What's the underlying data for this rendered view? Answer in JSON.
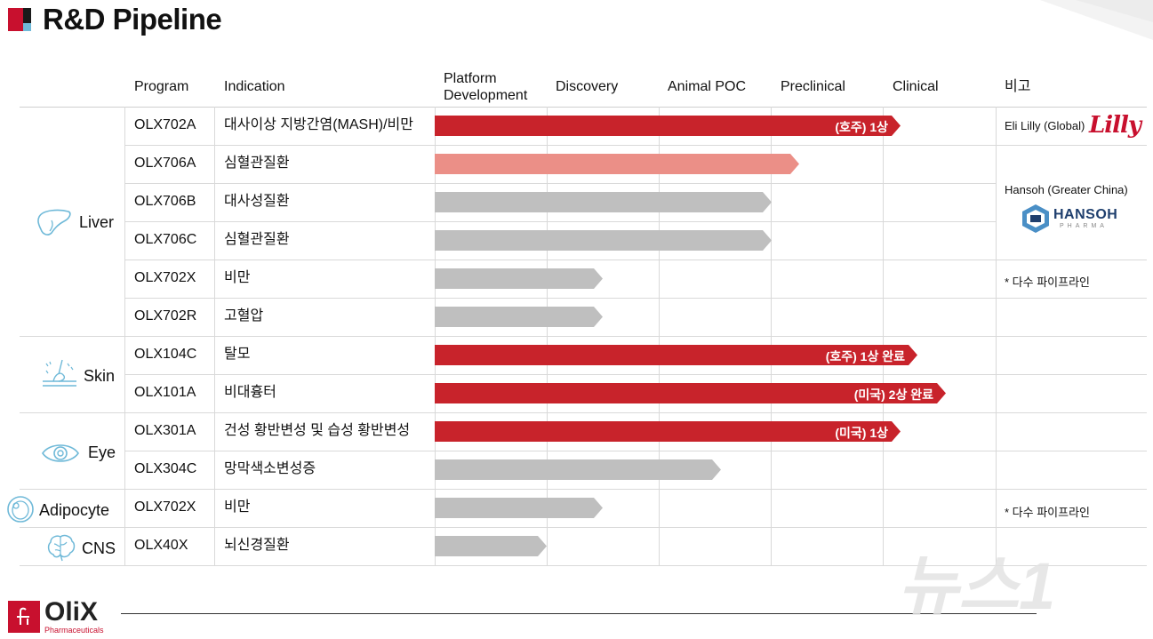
{
  "title": "R&D Pipeline",
  "columns": {
    "program": "Program",
    "indication": "Indication",
    "stages": [
      "Platform\nDevelopment",
      "Discovery",
      "Animal POC",
      "Preclinical",
      "Clinical"
    ],
    "note": "비고"
  },
  "categories": [
    {
      "label": "Liver",
      "icon": "liver-icon"
    },
    {
      "label": "Skin",
      "icon": "skin-icon"
    },
    {
      "label": "Eye",
      "icon": "eye-icon"
    },
    {
      "label": "Adipocyte",
      "icon": "adipocyte-icon"
    },
    {
      "label": "CNS",
      "icon": "brain-icon"
    }
  ],
  "rows": [
    {
      "program": "OLX702A",
      "indication": "대사이상 지방간염(MASH)/비만",
      "progress": 4.15,
      "status": "dark-red",
      "bar_label": "(호주) 1상"
    },
    {
      "program": "OLX706A",
      "indication": "심혈관질환",
      "progress": 3.25,
      "status": "light-red",
      "bar_label": ""
    },
    {
      "program": "OLX706B",
      "indication": "대사성질환",
      "progress": 3.0,
      "status": "gray",
      "bar_label": ""
    },
    {
      "program": "OLX706C",
      "indication": "심혈관질환",
      "progress": 3.0,
      "status": "gray",
      "bar_label": ""
    },
    {
      "program": "OLX702X",
      "indication": "비만",
      "progress": 1.5,
      "status": "gray",
      "bar_label": ""
    },
    {
      "program": "OLX702R",
      "indication": "고혈압",
      "progress": 1.5,
      "status": "gray",
      "bar_label": ""
    },
    {
      "program": "OLX104C",
      "indication": "탈모",
      "progress": 4.3,
      "status": "dark-red",
      "bar_label": "(호주) 1상 완료"
    },
    {
      "program": "OLX101A",
      "indication": "비대흉터",
      "progress": 4.55,
      "status": "dark-red",
      "bar_label": "(미국) 2상 완료"
    },
    {
      "program": "OLX301A",
      "indication": "건성 황반변성 및 습성 황반변성",
      "progress": 4.15,
      "status": "dark-red",
      "bar_label": "(미국) 1상"
    },
    {
      "program": "OLX304C",
      "indication": "망막색소변성증",
      "progress": 2.55,
      "status": "gray",
      "bar_label": ""
    },
    {
      "program": "OLX702X",
      "indication": "비만",
      "progress": 1.5,
      "status": "gray",
      "bar_label": ""
    },
    {
      "program": "OLX40X",
      "indication": "뇌신경질환",
      "progress": 1.0,
      "status": "gray",
      "bar_label": ""
    }
  ],
  "notes": {
    "lilly": "Eli Lilly (Global)",
    "lilly_logo": "Lilly",
    "hansoh": "Hansoh (Greater China)",
    "hansoh_logo": "HANSOH",
    "hansoh_logo_sub": "PHARMA",
    "multi1": "* 다수 파이프라인",
    "multi2": "* 다수 파이프라인"
  },
  "footer": {
    "logo": "OliX",
    "logo_sub": "Pharmaceuticals"
  },
  "watermark": "뉴스1",
  "colors": {
    "dark-red": "#c8232b",
    "light-red": "#eb8f87",
    "gray": "#bfbfbf",
    "brand": "#c8102e"
  }
}
